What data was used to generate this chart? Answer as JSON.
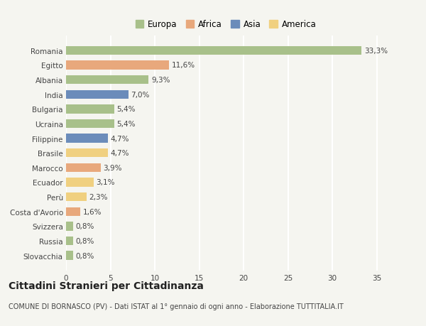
{
  "countries": [
    "Romania",
    "Egitto",
    "Albania",
    "India",
    "Bulgaria",
    "Ucraina",
    "Filippine",
    "Brasile",
    "Marocco",
    "Ecuador",
    "Perù",
    "Costa d'Avorio",
    "Svizzera",
    "Russia",
    "Slovacchia"
  ],
  "values": [
    33.3,
    11.6,
    9.3,
    7.0,
    5.4,
    5.4,
    4.7,
    4.7,
    3.9,
    3.1,
    2.3,
    1.6,
    0.8,
    0.8,
    0.8
  ],
  "labels": [
    "33,3%",
    "11,6%",
    "9,3%",
    "7,0%",
    "5,4%",
    "5,4%",
    "4,7%",
    "4,7%",
    "3,9%",
    "3,1%",
    "2,3%",
    "1,6%",
    "0,8%",
    "0,8%",
    "0,8%"
  ],
  "categories": [
    "Europa",
    "Africa",
    "Europa",
    "Asia",
    "Europa",
    "Europa",
    "Asia",
    "America",
    "Africa",
    "America",
    "America",
    "Africa",
    "Europa",
    "Europa",
    "Europa"
  ],
  "colors": {
    "Europa": "#a8c08a",
    "Africa": "#e8a87c",
    "Asia": "#6b8cba",
    "America": "#f0d080"
  },
  "legend_order": [
    "Europa",
    "Africa",
    "Asia",
    "America"
  ],
  "legend_colors": [
    "#a8c08a",
    "#e8a87c",
    "#6b8cba",
    "#f0d080"
  ],
  "xlim": [
    0,
    36
  ],
  "xticks": [
    0,
    5,
    10,
    15,
    20,
    25,
    30,
    35
  ],
  "title": "Cittadini Stranieri per Cittadinanza",
  "subtitle": "COMUNE DI BORNASCO (PV) - Dati ISTAT al 1° gennaio di ogni anno - Elaborazione TUTTITALIA.IT",
  "background_color": "#f5f5f0",
  "bar_height": 0.6,
  "label_fontsize": 7.5,
  "tick_fontsize": 7.5,
  "title_fontsize": 10,
  "subtitle_fontsize": 7
}
